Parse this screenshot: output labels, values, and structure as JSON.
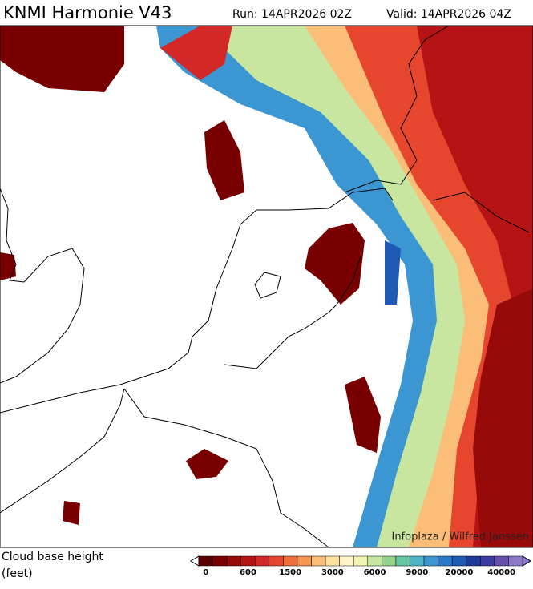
{
  "header": {
    "title": "KNMI Harmonie V43",
    "run": "Run: 14APR2026 02Z",
    "valid": "Valid: 14APR2026 04Z"
  },
  "map": {
    "credit": "Infoplaza / Wilfred Janssen"
  },
  "legend": {
    "label": "Cloud base height",
    "unit": "(feet)",
    "ticks": [
      0,
      600,
      1500,
      3000,
      6000,
      9000,
      20000,
      40000
    ],
    "colors": [
      "#5a0000",
      "#780000",
      "#960a0a",
      "#b41414",
      "#d22828",
      "#e6462d",
      "#f06e3c",
      "#f59650",
      "#fabe78",
      "#fde1a0",
      "#fff5c8",
      "#f0f5b4",
      "#c8e6a0",
      "#96d28c",
      "#64c8a0",
      "#50b4c8",
      "#3c96d2",
      "#2878c8",
      "#1e5ab4",
      "#1e3c96",
      "#3c3ca0",
      "#6450aa",
      "#8c78c8"
    ]
  }
}
